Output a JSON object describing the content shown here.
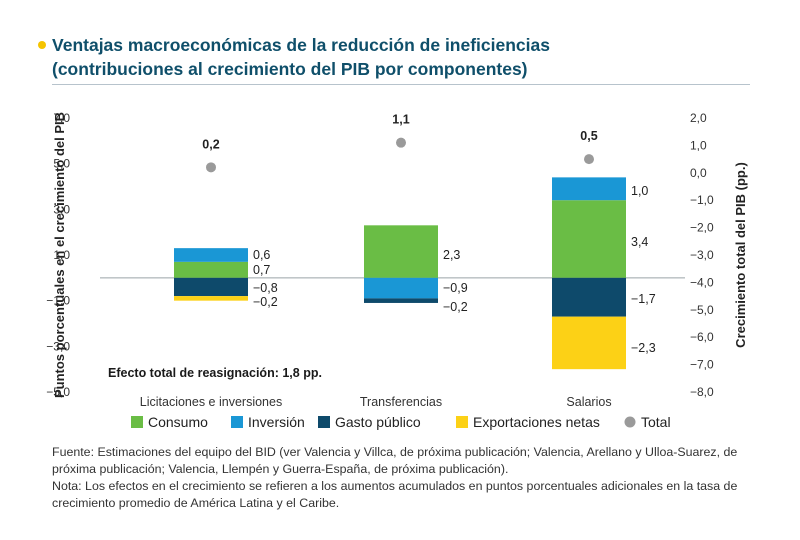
{
  "header": {
    "title_line1": "Ventajas macroeconómicas de la reducción de ineficiencias",
    "title_line2": "(contribuciones al crecimiento del PIB por componentes)",
    "accent": "#f5c400"
  },
  "chart_data": {
    "type": "bar",
    "stacked": true,
    "categories": [
      "Licitaciones e inversiones",
      "Transferencias",
      "Salarios"
    ],
    "ylabel": "Puntos porcentuales en el crecimiento del PIB",
    "y2label": "Crecimiento total del PIB (pp.)",
    "ylim": [
      -5.0,
      7.0
    ],
    "y2lim": [
      -8.0,
      2.0
    ],
    "y_ticks": [
      "7,0",
      "5,0",
      "3,0",
      "1,0",
      "−1,0",
      "−3,0",
      "−5,0"
    ],
    "y_tick_values": [
      7,
      5,
      3,
      1,
      -1,
      -3,
      -5
    ],
    "y2_ticks": [
      "2,0",
      "1,0",
      "0,0",
      "−1,0",
      "−2,0",
      "−3,0",
      "−4,0",
      "−5,0",
      "−6,0",
      "−7,0",
      "−8,0"
    ],
    "y2_tick_values": [
      2,
      1,
      0,
      -1,
      -2,
      -3,
      -4,
      -5,
      -6,
      -7,
      -8
    ],
    "series": [
      {
        "name": "Consumo",
        "color": "#6abd45",
        "values": [
          0.7,
          2.3,
          3.4
        ],
        "labels": [
          "0,7",
          "2,3",
          "3,4"
        ]
      },
      {
        "name": "Inversión",
        "color": "#1a97d5",
        "values": [
          0.6,
          -0.9,
          1.0
        ],
        "labels": [
          "0,6",
          "−0,9",
          "1,0"
        ]
      },
      {
        "name": "Gasto público",
        "color": "#0e4a6b",
        "values": [
          -0.8,
          -0.2,
          -1.7
        ],
        "labels": [
          "−0,8",
          "−0,2",
          "−1,7"
        ]
      },
      {
        "name": "Exportaciones netas",
        "color": "#fcd116",
        "values": [
          -0.2,
          0.0,
          -2.3
        ],
        "labels": [
          "−0,2",
          "",
          "−2,3"
        ]
      }
    ],
    "total": {
      "name": "Total",
      "color": "#9a9a9a",
      "axis": "right",
      "values": [
        0.2,
        1.1,
        0.5
      ],
      "labels": [
        "0,2",
        "1,1",
        "0,5"
      ]
    },
    "annotation": "Efecto total de reasignación: 1,8 pp.",
    "legend_position": "bottom",
    "grid": false
  },
  "footer": {
    "source": "Fuente: Estimaciones del equipo del BID (ver Valencia y Villca, de próxima publicación; Valencia, Arellano y Ulloa-Suarez, de próxima publicación; Valencia, Llempén y Guerra-España, de próxima publicación).",
    "note": "Nota: Los efectos en el crecimiento se refieren a los aumentos acumulados en puntos porcentuales adicionales en la tasa de crecimiento promedio de América Latina y el Caribe."
  }
}
